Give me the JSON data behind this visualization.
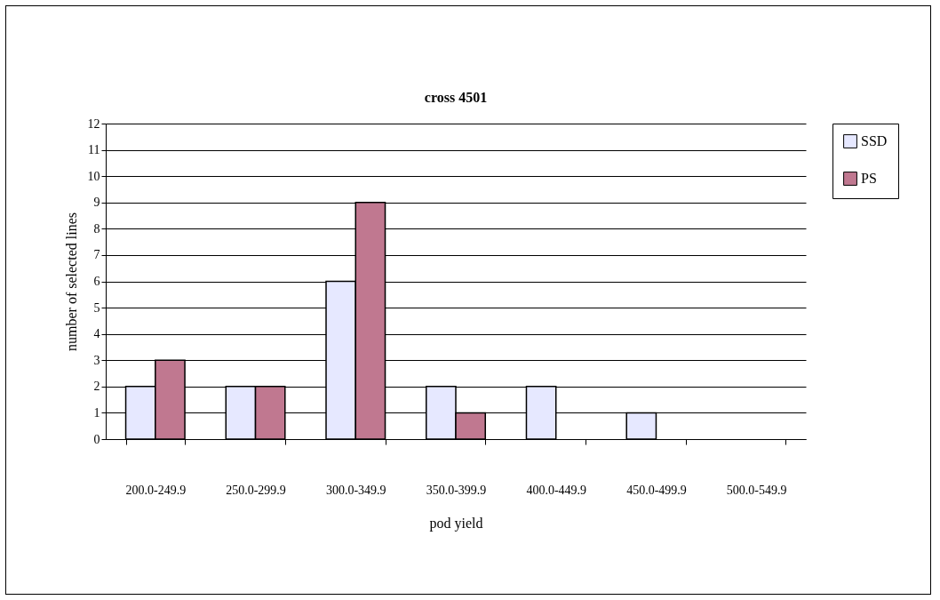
{
  "chart_data": {
    "type": "bar",
    "title": "cross 4501",
    "xlabel": "pod yield",
    "ylabel": "number of selected lines",
    "categories": [
      "200.0-249.9",
      "250.0-299.9",
      "300.0-349.9",
      "350.0-399.9",
      "400.0-449.9",
      "450.0-499.9",
      "500.0-549.9"
    ],
    "series": [
      {
        "name": "SSD",
        "color": "#e6e8ff",
        "values": [
          2,
          2,
          6,
          2,
          2,
          1,
          0
        ]
      },
      {
        "name": "PS",
        "color": "#c07890",
        "values": [
          3,
          2,
          9,
          1,
          0,
          0,
          0
        ]
      }
    ],
    "ylim": [
      0,
      12
    ],
    "yticks": [
      0,
      1,
      2,
      3,
      4,
      5,
      6,
      7,
      8,
      9,
      10,
      11,
      12
    ],
    "grid": "y",
    "legend": "right"
  }
}
